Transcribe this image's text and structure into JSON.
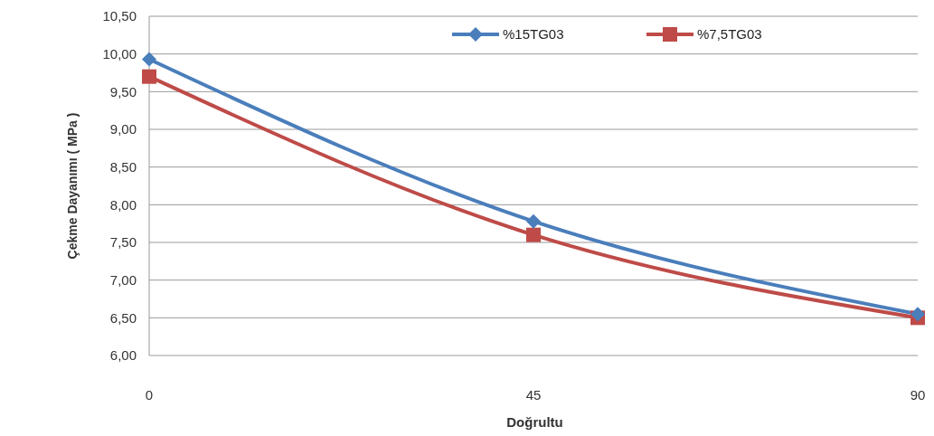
{
  "chart_data": {
    "type": "line",
    "xlabel": "Doğrultu",
    "ylabel": "Çekme Dayanımı ( MPa )",
    "x": [
      0,
      45,
      90
    ],
    "xlim": [
      0,
      90
    ],
    "xticks": [
      0,
      45,
      90
    ],
    "ylim": [
      6,
      10.5
    ],
    "yticks": [
      {
        "value": 6,
        "label": "6,00"
      },
      {
        "value": 6.5,
        "label": "6,50"
      },
      {
        "value": 7,
        "label": "7,00"
      },
      {
        "value": 7.5,
        "label": "7,50"
      },
      {
        "value": 8,
        "label": "8,00"
      },
      {
        "value": 8.5,
        "label": "8,50"
      },
      {
        "value": 9,
        "label": "9,00"
      },
      {
        "value": 9.5,
        "label": "9,50"
      },
      {
        "value": 10,
        "label": "10,00"
      },
      {
        "value": 10.5,
        "label": "10,50"
      }
    ],
    "grid": "y",
    "legend": "top right",
    "series": [
      {
        "name": "%15TG03",
        "color": "#4a7ebb",
        "marker": "diamond",
        "values": [
          9.93,
          7.78,
          6.55
        ]
      },
      {
        "name": "%7,5TG03",
        "color": "#be4b48",
        "marker": "square",
        "values": [
          9.7,
          7.6,
          6.5
        ]
      }
    ]
  }
}
